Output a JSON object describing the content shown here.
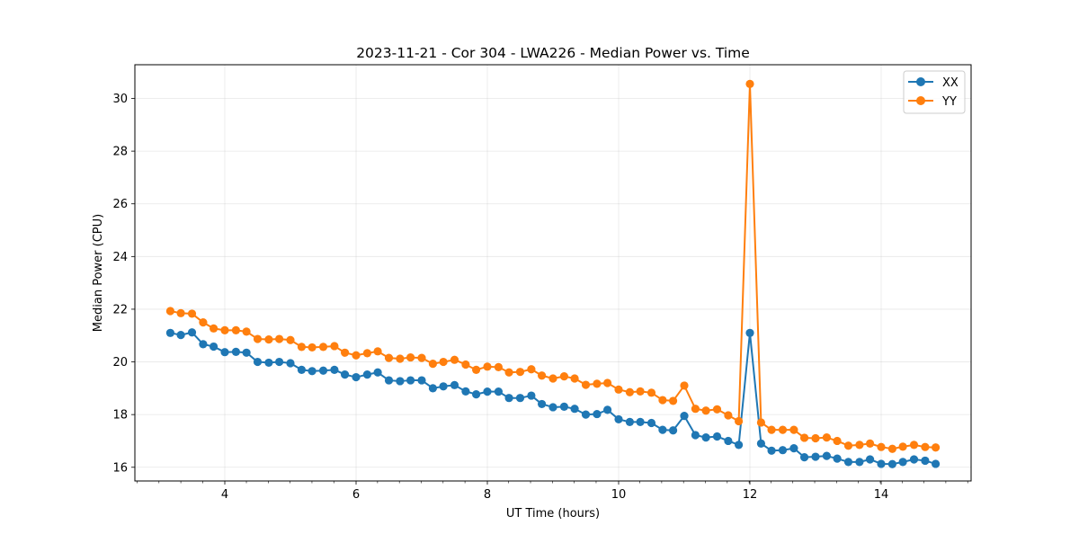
{
  "chart_data": {
    "type": "line",
    "title": "2023-11-21 - Cor 304 - LWA226 - Median Power vs. Time",
    "xlabel": "UT Time (hours)",
    "ylabel": "Median Power (CPU)",
    "xlim": [
      2.63,
      15.37
    ],
    "ylim": [
      15.48,
      31.28
    ],
    "grid": true,
    "legend_position": "top-right",
    "xticks": [
      4,
      6,
      8,
      10,
      12,
      14
    ],
    "xtick_labels": [
      "4",
      "6",
      "8",
      "10",
      "12",
      "14"
    ],
    "xminor_step": 0.333,
    "yticks": [
      16,
      18,
      20,
      22,
      24,
      26,
      28,
      30
    ],
    "ytick_labels": [
      "16",
      "18",
      "20",
      "22",
      "24",
      "26",
      "28",
      "30"
    ],
    "x": [
      3.17,
      3.33,
      3.5,
      3.67,
      3.83,
      4.0,
      4.17,
      4.33,
      4.5,
      4.67,
      4.83,
      5.0,
      5.17,
      5.33,
      5.5,
      5.67,
      5.83,
      6.0,
      6.17,
      6.33,
      6.5,
      6.67,
      6.83,
      7.0,
      7.17,
      7.33,
      7.5,
      7.67,
      7.83,
      8.0,
      8.17,
      8.33,
      8.5,
      8.67,
      8.83,
      9.0,
      9.17,
      9.33,
      9.5,
      9.67,
      9.83,
      10.0,
      10.17,
      10.33,
      10.5,
      10.67,
      10.83,
      11.0,
      11.17,
      11.33,
      11.5,
      11.67,
      11.83,
      12.0,
      12.17,
      12.33,
      12.5,
      12.67,
      12.83,
      13.0,
      13.17,
      13.33,
      13.5,
      13.67,
      13.83,
      14.0,
      14.17,
      14.33,
      14.5,
      14.67,
      14.83
    ],
    "series": [
      {
        "name": "XX",
        "color": "#1f77b4",
        "values": [
          21.1,
          21.02,
          21.12,
          20.67,
          20.58,
          20.37,
          20.38,
          20.35,
          20.0,
          19.97,
          20.0,
          19.95,
          19.7,
          19.65,
          19.67,
          19.7,
          19.52,
          19.42,
          19.52,
          19.6,
          19.3,
          19.27,
          19.3,
          19.3,
          19.0,
          19.07,
          19.12,
          18.88,
          18.77,
          18.87,
          18.87,
          18.63,
          18.63,
          18.72,
          18.4,
          18.28,
          18.3,
          18.22,
          18.0,
          18.02,
          18.18,
          17.82,
          17.72,
          17.72,
          17.68,
          17.42,
          17.4,
          17.95,
          17.22,
          17.13,
          17.17,
          17.0,
          16.85,
          21.1,
          16.9,
          16.63,
          16.65,
          16.72,
          16.38,
          16.4,
          16.43,
          16.33,
          16.2,
          16.2,
          16.3,
          16.13,
          16.12,
          16.2,
          16.3,
          16.25,
          16.13
        ]
      },
      {
        "name": "YY",
        "color": "#ff7f0e",
        "values": [
          21.93,
          21.85,
          21.83,
          21.5,
          21.27,
          21.2,
          21.2,
          21.15,
          20.87,
          20.85,
          20.87,
          20.83,
          20.57,
          20.55,
          20.57,
          20.6,
          20.35,
          20.25,
          20.33,
          20.4,
          20.15,
          20.12,
          20.17,
          20.15,
          19.93,
          20.0,
          20.08,
          19.9,
          19.7,
          19.82,
          19.8,
          19.6,
          19.62,
          19.72,
          19.48,
          19.37,
          19.45,
          19.37,
          19.13,
          19.17,
          19.2,
          18.95,
          18.85,
          18.88,
          18.83,
          18.55,
          18.52,
          19.1,
          18.22,
          18.15,
          18.2,
          17.97,
          17.75,
          30.55,
          17.7,
          17.42,
          17.42,
          17.42,
          17.12,
          17.1,
          17.13,
          17.0,
          16.82,
          16.85,
          16.9,
          16.77,
          16.7,
          16.78,
          16.85,
          16.77,
          16.75
        ]
      }
    ]
  }
}
